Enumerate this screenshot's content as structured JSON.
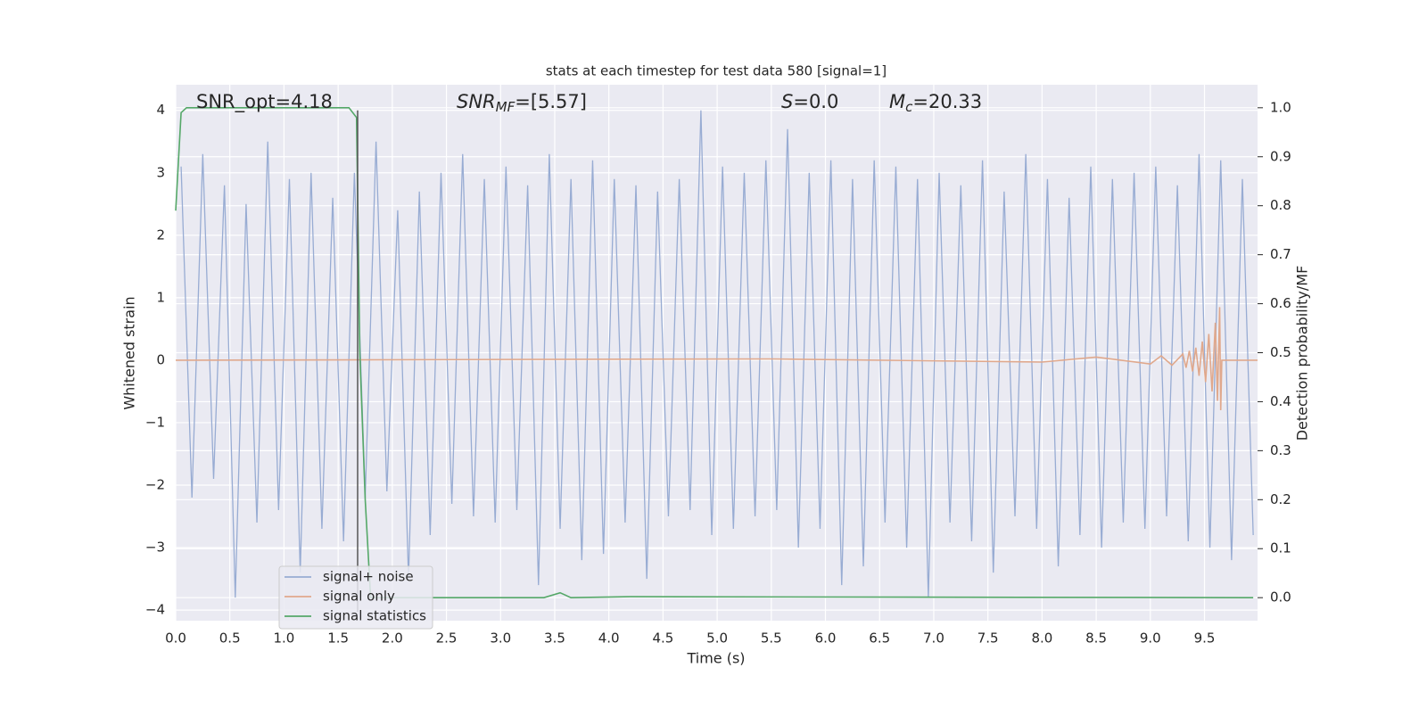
{
  "chart_data": {
    "type": "line",
    "title": "stats at each timestep for test data 580 [signal=1]",
    "xlabel": "Time (s)",
    "ylabel": "Whitened strain",
    "y2label": "Detection probability/MF",
    "annotations": [
      [
        "SNR_opt=4.18"
      ],
      [
        "SNR",
        "MF",
        "=[5.57]"
      ],
      [
        "S",
        "=0.0"
      ],
      [
        "M",
        "c",
        "=20.33"
      ]
    ],
    "xlim": [
      0,
      9.99
    ],
    "ylim": [
      -4.17,
      4.41
    ],
    "y2lim": [
      -0.047,
      1.047
    ],
    "xticks": [
      {
        "value": 0,
        "label": "0.0"
      },
      0.5,
      {
        "value": 1,
        "label": "1.0"
      },
      1.5,
      {
        "value": 2,
        "label": "2.0"
      },
      2.5,
      {
        "value": 3,
        "label": "3.0"
      },
      3.5,
      {
        "value": 4,
        "label": "4.0"
      },
      4.5,
      {
        "value": 5,
        "label": "5.0"
      },
      5.5,
      {
        "value": 6,
        "label": "6.0"
      },
      6.5,
      {
        "value": 7,
        "label": "7.0"
      },
      7.5,
      {
        "value": 8,
        "label": "8.0"
      },
      8.5,
      {
        "value": 9,
        "label": "9.0"
      },
      9.5
    ],
    "yticks": [
      {
        "value": -4,
        "label": "−4"
      },
      {
        "value": -3,
        "label": "−3"
      },
      {
        "value": -2,
        "label": "−2"
      },
      {
        "value": -1,
        "label": "−1"
      },
      0,
      1,
      2,
      3,
      4
    ],
    "y2ticks": [
      {
        "value": 0,
        "label": "0.0"
      },
      0.1,
      0.2,
      0.3,
      0.4,
      0.5,
      0.6,
      0.7,
      0.8,
      0.9,
      {
        "value": 1,
        "label": "1.0"
      }
    ],
    "grid": true,
    "vline_x": 1.68,
    "series": [
      {
        "name": "signal+ noise",
        "color": "#98acd3",
        "x": [
          0.05,
          0.15,
          0.25,
          0.35,
          0.45,
          0.55,
          0.65,
          0.75,
          0.85,
          0.95,
          1.05,
          1.15,
          1.25,
          1.35,
          1.45,
          1.55,
          1.65,
          1.75,
          1.85,
          1.95,
          2.05,
          2.15,
          2.25,
          2.35,
          2.45,
          2.55,
          2.65,
          2.75,
          2.85,
          2.95,
          3.05,
          3.15,
          3.25,
          3.35,
          3.45,
          3.55,
          3.65,
          3.75,
          3.85,
          3.95,
          4.05,
          4.15,
          4.25,
          4.35,
          4.45,
          4.55,
          4.65,
          4.75,
          4.85,
          4.95,
          5.05,
          5.15,
          5.25,
          5.35,
          5.45,
          5.55,
          5.65,
          5.75,
          5.85,
          5.95,
          6.05,
          6.15,
          6.25,
          6.35,
          6.45,
          6.55,
          6.65,
          6.75,
          6.85,
          6.95,
          7.05,
          7.15,
          7.25,
          7.35,
          7.45,
          7.55,
          7.65,
          7.75,
          7.85,
          7.95,
          8.05,
          8.15,
          8.25,
          8.35,
          8.45,
          8.55,
          8.65,
          8.75,
          8.85,
          8.95,
          9.05,
          9.15,
          9.25,
          9.35,
          9.45,
          9.55,
          9.65,
          9.75,
          9.85,
          9.95
        ],
        "values": [
          3.1,
          -2.2,
          3.3,
          -1.9,
          2.8,
          -3.8,
          2.5,
          -2.6,
          3.5,
          -2.4,
          2.9,
          -3.4,
          3.0,
          -2.7,
          2.6,
          -2.9,
          3.0,
          -2.2,
          3.5,
          -2.1,
          2.4,
          -3.5,
          2.7,
          -2.8,
          3.0,
          -2.3,
          3.3,
          -2.5,
          2.9,
          -2.6,
          3.1,
          -2.4,
          2.8,
          -3.6,
          3.3,
          -2.7,
          2.9,
          -3.2,
          3.2,
          -3.1,
          2.9,
          -2.6,
          2.8,
          -3.5,
          2.7,
          -2.5,
          2.9,
          -2.4,
          4.0,
          -2.8,
          3.1,
          -2.7,
          3.0,
          -2.5,
          3.2,
          -2.4,
          3.7,
          -3.0,
          3.0,
          -2.7,
          3.2,
          -3.6,
          2.9,
          -3.3,
          3.2,
          -2.6,
          3.1,
          -3.0,
          2.9,
          -3.8,
          3.0,
          -2.6,
          2.8,
          -2.9,
          3.2,
          -3.4,
          2.7,
          -2.5,
          3.3,
          -2.7,
          2.9,
          -3.3,
          2.6,
          -2.8,
          3.1,
          -3.0,
          2.9,
          -2.6,
          3.0,
          -2.7,
          3.1,
          -2.5,
          2.8,
          -2.9,
          3.3,
          -3.0,
          3.2,
          -3.2,
          2.9,
          -2.8
        ]
      },
      {
        "name": "signal only",
        "color": "#e0a88c",
        "x": [
          0,
          5.5,
          8.0,
          8.5,
          9.0,
          9.1,
          9.2,
          9.3,
          9.33,
          9.36,
          9.39,
          9.42,
          9.45,
          9.48,
          9.51,
          9.54,
          9.57,
          9.6,
          9.62,
          9.64,
          9.65,
          9.66,
          9.99
        ],
        "values": [
          0,
          0.02,
          -0.03,
          0.05,
          -0.06,
          0.07,
          -0.08,
          0.1,
          -0.12,
          0.15,
          -0.18,
          0.2,
          -0.25,
          0.3,
          -0.35,
          0.42,
          -0.5,
          0.6,
          -0.65,
          0.85,
          -0.8,
          0,
          0
        ]
      },
      {
        "name": "signal statistics",
        "color": "#55a868",
        "axis": "y2",
        "x": [
          0,
          0.05,
          0.1,
          1.6,
          1.67,
          1.7,
          1.75,
          1.8,
          3.4,
          3.55,
          3.65,
          4.2,
          9.95
        ],
        "values": [
          0.79,
          0.99,
          1.0,
          1.0,
          0.98,
          0.5,
          0.2,
          0.0,
          0.0,
          0.01,
          0.0,
          0.002,
          0.0
        ]
      }
    ]
  }
}
